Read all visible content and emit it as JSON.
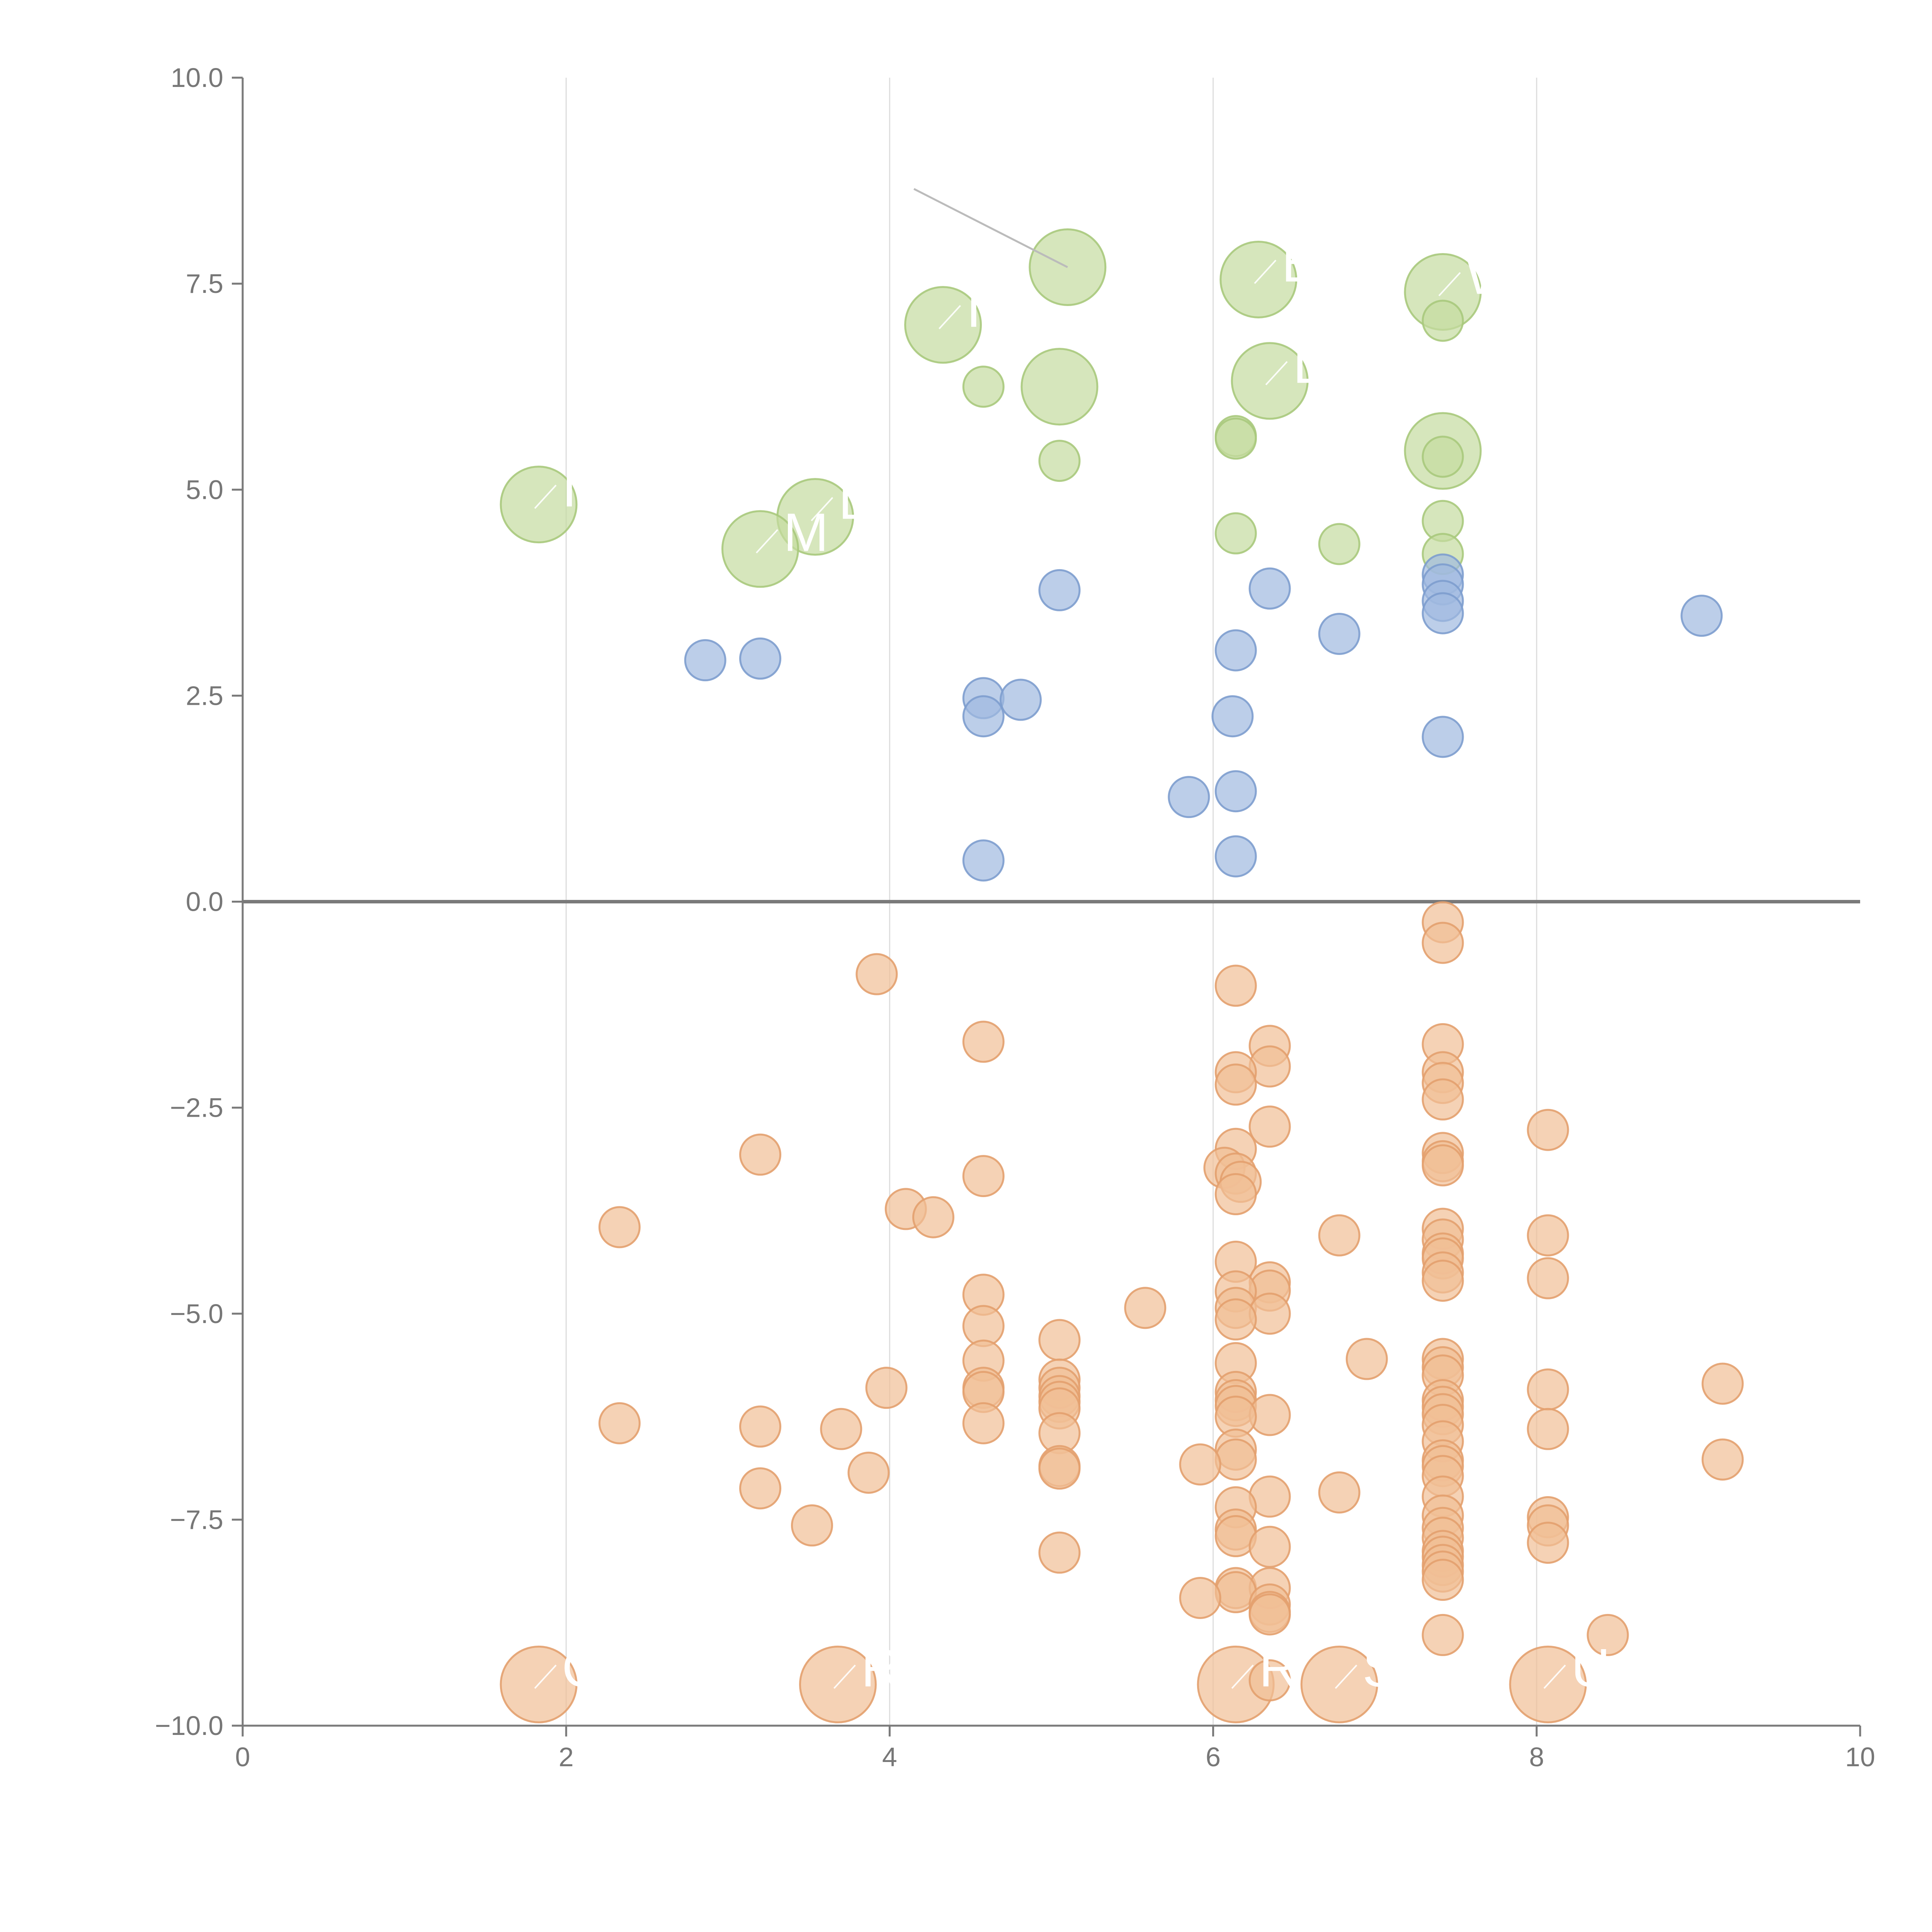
{
  "chart_data": {
    "type": "scatter",
    "title": "",
    "xlabel": "",
    "ylabel": "",
    "xlim": [
      0,
      10
    ],
    "ylim": [
      -10,
      10
    ],
    "grid": "vertical",
    "x_ticks": [
      0,
      2,
      4,
      6,
      8,
      10
    ],
    "x_tick_labels": [
      "0",
      "2",
      "4",
      "6",
      "8",
      "10"
    ],
    "y_ticks": [
      10,
      7.5,
      5,
      2.5,
      0,
      -2.5,
      -5,
      -7.5,
      -10
    ],
    "y_tick_labels": [
      "10.0",
      "7.5",
      "5.0",
      "2.5",
      "0.0",
      "−2.5",
      "−5.0",
      "−7.5",
      "−10.0"
    ],
    "colors": {
      "green_fill": "#c5dba0",
      "green_stroke": "#a8c97c",
      "blue_fill": "#9fb9df",
      "blue_stroke": "#7d9dce",
      "orange_fill": "#f1bf96",
      "orange_stroke": "#e3a06e",
      "label": "#ffffff"
    },
    "series": [
      {
        "name": "green",
        "color": "#c5dba0",
        "points": [
          [
            5.1,
            7.7,
            3
          ],
          [
            6.28,
            7.55,
            3
          ],
          [
            7.42,
            7.4,
            3
          ],
          [
            4.33,
            7.0,
            3
          ],
          [
            6.35,
            6.32,
            3
          ],
          [
            5.05,
            6.25,
            3
          ],
          [
            7.42,
            5.47,
            3
          ],
          [
            1.83,
            4.82,
            3
          ],
          [
            3.54,
            4.67,
            3
          ],
          [
            3.2,
            4.28,
            3
          ],
          [
            7.42,
            7.05,
            1
          ],
          [
            4.58,
            6.25,
            1
          ],
          [
            6.14,
            5.65,
            1
          ],
          [
            6.14,
            5.62,
            1
          ],
          [
            7.42,
            5.4,
            1
          ],
          [
            5.05,
            5.35,
            1
          ],
          [
            7.42,
            4.62,
            1
          ],
          [
            6.14,
            4.47,
            1
          ],
          [
            6.78,
            4.34,
            1
          ],
          [
            7.42,
            4.22,
            1
          ]
        ]
      },
      {
        "name": "blue",
        "color": "#9fb9df",
        "points": [
          [
            7.42,
            3.97,
            1
          ],
          [
            7.42,
            3.85,
            1
          ],
          [
            5.05,
            3.78,
            1
          ],
          [
            6.35,
            3.8,
            1
          ],
          [
            7.42,
            3.65,
            1
          ],
          [
            7.42,
            3.5,
            1
          ],
          [
            9.02,
            3.47,
            1
          ],
          [
            6.78,
            3.25,
            1
          ],
          [
            6.14,
            3.05,
            1
          ],
          [
            2.86,
            2.93,
            1
          ],
          [
            3.2,
            2.95,
            1
          ],
          [
            4.58,
            2.47,
            1
          ],
          [
            4.81,
            2.45,
            1
          ],
          [
            4.58,
            2.25,
            1
          ],
          [
            6.12,
            2.25,
            1
          ],
          [
            7.42,
            2.0,
            1
          ],
          [
            6.14,
            1.34,
            1
          ],
          [
            5.85,
            1.27,
            1
          ],
          [
            6.14,
            0.55,
            1
          ],
          [
            4.58,
            0.5,
            1
          ]
        ]
      },
      {
        "name": "orange",
        "color": "#f1bf96",
        "points": [
          [
            1.83,
            -9.5,
            3
          ],
          [
            3.68,
            -9.5,
            3
          ],
          [
            6.14,
            -9.5,
            3
          ],
          [
            6.78,
            -9.5,
            3
          ],
          [
            8.07,
            -9.5,
            3
          ],
          [
            8.44,
            -8.9,
            1
          ],
          [
            7.42,
            -8.9,
            1
          ],
          [
            7.42,
            -0.25,
            1
          ],
          [
            7.42,
            -0.5,
            1
          ],
          [
            3.92,
            -0.88,
            1
          ],
          [
            6.14,
            -1.02,
            1
          ],
          [
            4.58,
            -1.7,
            1
          ],
          [
            6.35,
            -1.75,
            1
          ],
          [
            7.42,
            -1.73,
            1
          ],
          [
            6.35,
            -2.0,
            1
          ],
          [
            6.14,
            -2.07,
            1
          ],
          [
            7.42,
            -2.07,
            1
          ],
          [
            6.14,
            -2.22,
            1
          ],
          [
            7.42,
            -2.2,
            1
          ],
          [
            7.42,
            -2.4,
            1
          ],
          [
            6.35,
            -2.73,
            1
          ],
          [
            8.07,
            -2.77,
            1
          ],
          [
            6.14,
            -3.0,
            1
          ],
          [
            3.2,
            -3.07,
            1
          ],
          [
            7.42,
            -3.05,
            1
          ],
          [
            7.42,
            -3.15,
            1
          ],
          [
            7.42,
            -3.2,
            1
          ],
          [
            6.07,
            -3.23,
            1
          ],
          [
            6.14,
            -3.3,
            1
          ],
          [
            6.17,
            -3.4,
            1
          ],
          [
            4.58,
            -3.33,
            1
          ],
          [
            6.14,
            -3.55,
            1
          ],
          [
            4.1,
            -3.73,
            1
          ],
          [
            4.27,
            -3.83,
            1
          ],
          [
            2.33,
            -3.95,
            1
          ],
          [
            7.42,
            -3.97,
            1
          ],
          [
            6.78,
            -4.05,
            1
          ],
          [
            8.07,
            -4.05,
            1
          ],
          [
            7.42,
            -4.1,
            1
          ],
          [
            7.42,
            -4.27,
            1
          ],
          [
            7.42,
            -4.33,
            1
          ],
          [
            6.14,
            -4.37,
            1
          ],
          [
            7.42,
            -4.5,
            1
          ],
          [
            7.42,
            -4.6,
            1
          ],
          [
            8.07,
            -4.57,
            1
          ],
          [
            6.35,
            -4.62,
            1
          ],
          [
            6.35,
            -4.72,
            1
          ],
          [
            6.14,
            -4.73,
            1
          ],
          [
            4.58,
            -4.77,
            1
          ],
          [
            6.14,
            -4.93,
            1
          ],
          [
            5.58,
            -4.93,
            1
          ],
          [
            6.35,
            -5.0,
            1
          ],
          [
            6.14,
            -5.07,
            1
          ],
          [
            4.58,
            -5.15,
            1
          ],
          [
            5.05,
            -5.32,
            1
          ],
          [
            4.58,
            -5.57,
            1
          ],
          [
            6.14,
            -5.6,
            1
          ],
          [
            6.95,
            -5.55,
            1
          ],
          [
            7.42,
            -5.55,
            1
          ],
          [
            7.42,
            -5.65,
            1
          ],
          [
            7.42,
            -5.75,
            1
          ],
          [
            5.05,
            -5.8,
            1
          ],
          [
            9.15,
            -5.85,
            1
          ],
          [
            3.98,
            -5.9,
            1
          ],
          [
            5.05,
            -5.9,
            1
          ],
          [
            4.58,
            -5.9,
            1
          ],
          [
            8.07,
            -5.92,
            1
          ],
          [
            4.58,
            -5.95,
            1
          ],
          [
            6.14,
            -5.95,
            1
          ],
          [
            5.05,
            -6.0,
            1
          ],
          [
            6.14,
            -6.05,
            1
          ],
          [
            7.42,
            -6.05,
            1
          ],
          [
            5.05,
            -6.07,
            1
          ],
          [
            6.14,
            -6.12,
            1
          ],
          [
            7.42,
            -6.13,
            1
          ],
          [
            5.05,
            -6.15,
            1
          ],
          [
            7.42,
            -6.22,
            1
          ],
          [
            6.35,
            -6.23,
            1
          ],
          [
            6.14,
            -6.25,
            1
          ],
          [
            2.33,
            -6.33,
            1
          ],
          [
            4.58,
            -6.33,
            1
          ],
          [
            3.2,
            -6.37,
            1
          ],
          [
            7.42,
            -6.35,
            1
          ],
          [
            3.7,
            -6.4,
            1
          ],
          [
            8.07,
            -6.4,
            1
          ],
          [
            5.05,
            -6.45,
            1
          ],
          [
            7.42,
            -6.55,
            1
          ],
          [
            6.14,
            -6.65,
            1
          ],
          [
            6.14,
            -6.77,
            1
          ],
          [
            9.15,
            -6.77,
            1
          ],
          [
            7.42,
            -6.78,
            1
          ],
          [
            5.92,
            -6.83,
            1
          ],
          [
            5.05,
            -6.85,
            1
          ],
          [
            7.42,
            -6.85,
            1
          ],
          [
            5.05,
            -6.88,
            1
          ],
          [
            3.87,
            -6.93,
            1
          ],
          [
            7.42,
            -6.97,
            1
          ],
          [
            3.2,
            -7.12,
            1
          ],
          [
            6.78,
            -7.17,
            1
          ],
          [
            7.42,
            -7.22,
            1
          ],
          [
            6.35,
            -7.22,
            1
          ],
          [
            6.14,
            -7.35,
            1
          ],
          [
            7.42,
            -7.45,
            1
          ],
          [
            8.07,
            -7.47,
            1
          ],
          [
            3.52,
            -7.57,
            1
          ],
          [
            8.07,
            -7.57,
            1
          ],
          [
            7.42,
            -7.6,
            1
          ],
          [
            6.14,
            -7.62,
            1
          ],
          [
            6.14,
            -7.7,
            1
          ],
          [
            7.42,
            -7.72,
            1
          ],
          [
            8.07,
            -7.78,
            1
          ],
          [
            6.35,
            -7.83,
            1
          ],
          [
            7.42,
            -7.88,
            1
          ],
          [
            5.05,
            -7.9,
            1
          ],
          [
            7.42,
            -7.95,
            1
          ],
          [
            7.42,
            -8.05,
            1
          ],
          [
            7.42,
            -8.13,
            1
          ],
          [
            7.42,
            -8.23,
            1
          ],
          [
            6.14,
            -8.33,
            1
          ],
          [
            6.35,
            -8.33,
            1
          ],
          [
            6.14,
            -8.38,
            1
          ],
          [
            5.92,
            -8.45,
            1
          ],
          [
            6.35,
            -8.53,
            1
          ],
          [
            6.35,
            -8.62,
            1
          ],
          [
            6.35,
            -8.65,
            1
          ],
          [
            6.35,
            -9.45,
            1
          ]
        ]
      }
    ],
    "labels": [
      {
        "text": "B",
        "at": [
          6.28,
          7.55
        ]
      },
      {
        "text": "W",
        "at": [
          7.42,
          7.4
        ]
      },
      {
        "text": "I",
        "at": [
          4.33,
          7.0
        ]
      },
      {
        "text": "D",
        "at": [
          6.35,
          6.32
        ]
      },
      {
        "text": "D",
        "at": [
          3.54,
          4.67
        ]
      },
      {
        "text": "M",
        "at": [
          3.2,
          4.28
        ]
      },
      {
        "text": "I",
        "at": [
          1.83,
          4.82
        ]
      },
      {
        "text": "C",
        "at": [
          1.83,
          -9.5
        ]
      },
      {
        "text": "R",
        "at": [
          3.68,
          -9.5
        ]
      },
      {
        "text": "R",
        "at": [
          6.14,
          -9.5
        ]
      },
      {
        "text": "S",
        "at": [
          6.78,
          -9.5
        ]
      },
      {
        "text": "U",
        "at": [
          8.07,
          -9.5
        ]
      }
    ]
  }
}
